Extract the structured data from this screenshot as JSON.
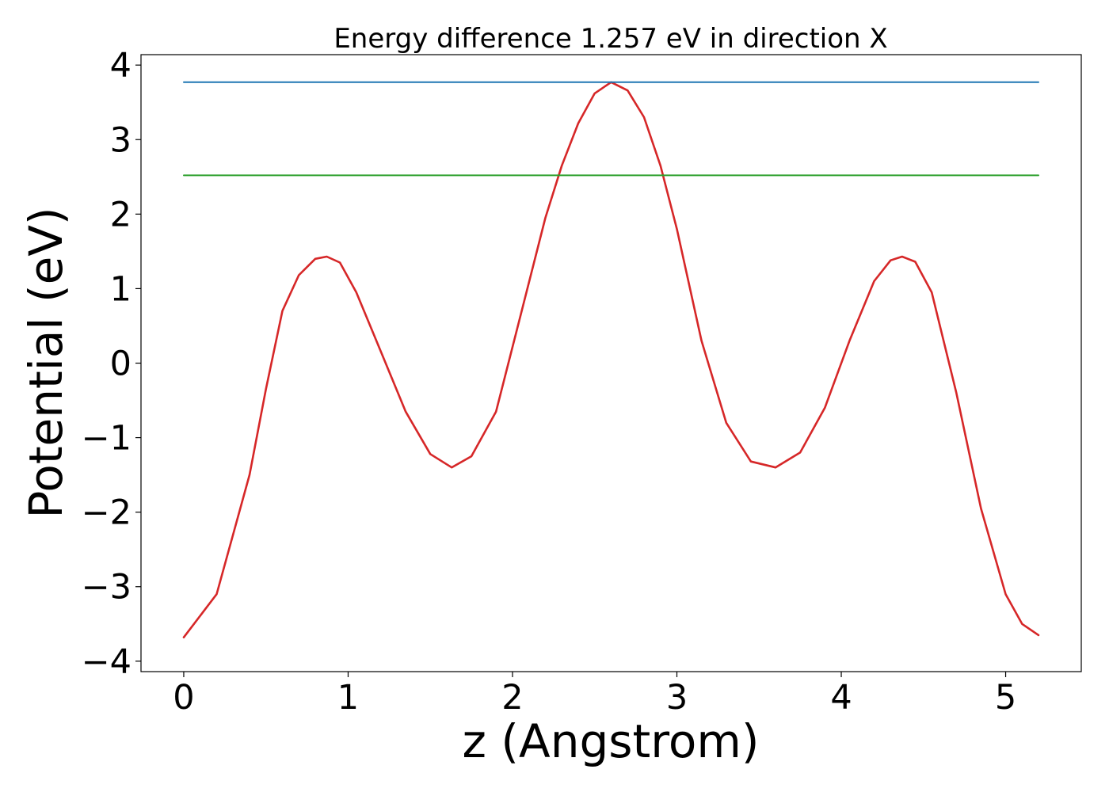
{
  "chart_data": {
    "type": "line",
    "title": "Energy difference 1.257 eV in direction X",
    "xlabel": "z (Angstrom)",
    "ylabel": "Potential (eV)",
    "xlim": [
      -0.26,
      5.46
    ],
    "ylim": [
      -4.14,
      4.14
    ],
    "xticks": [
      0,
      1,
      2,
      3,
      4,
      5
    ],
    "xtick_labels": [
      "0",
      "1",
      "2",
      "3",
      "4",
      "5"
    ],
    "yticks": [
      -4,
      -3,
      -2,
      -1,
      0,
      1,
      2,
      3,
      4
    ],
    "ytick_labels": [
      "−4",
      "−3",
      "−2",
      "−1",
      "0",
      "1",
      "2",
      "3",
      "4"
    ],
    "grid": false,
    "series": [
      {
        "color": "#d62728",
        "style": "line",
        "x": [
          0.0,
          0.2,
          0.4,
          0.5,
          0.6,
          0.7,
          0.8,
          0.87,
          0.95,
          1.05,
          1.2,
          1.35,
          1.5,
          1.63,
          1.75,
          1.9,
          2.05,
          2.2,
          2.3,
          2.4,
          2.5,
          2.6,
          2.7,
          2.8,
          2.9,
          3.0,
          3.15,
          3.3,
          3.45,
          3.6,
          3.75,
          3.9,
          4.05,
          4.2,
          4.3,
          4.37,
          4.45,
          4.55,
          4.7,
          4.85,
          5.0,
          5.1,
          5.2
        ],
        "y": [
          -3.68,
          -3.1,
          -1.5,
          -0.35,
          0.7,
          1.18,
          1.4,
          1.43,
          1.35,
          0.95,
          0.15,
          -0.65,
          -1.22,
          -1.4,
          -1.25,
          -0.65,
          0.65,
          1.95,
          2.65,
          3.22,
          3.62,
          3.77,
          3.66,
          3.3,
          2.65,
          1.8,
          0.3,
          -0.8,
          -1.32,
          -1.4,
          -1.2,
          -0.6,
          0.3,
          1.1,
          1.38,
          1.43,
          1.36,
          0.95,
          -0.4,
          -1.95,
          -3.1,
          -3.5,
          -3.65
        ]
      },
      {
        "color": "#1f77b4",
        "style": "hline",
        "x": [
          0.0,
          5.2
        ],
        "y": [
          3.77,
          3.77
        ]
      },
      {
        "color": "#2ca02c",
        "style": "hline",
        "x": [
          0.0,
          5.2
        ],
        "y": [
          2.52,
          2.52
        ]
      }
    ]
  }
}
